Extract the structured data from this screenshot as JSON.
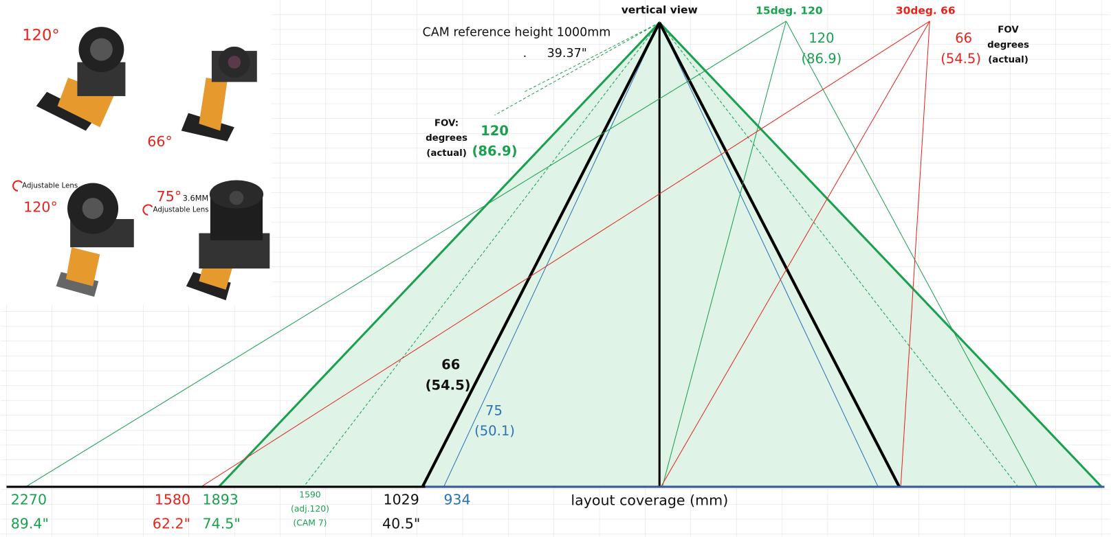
{
  "photos": [
    {
      "fov": "120°"
    },
    {
      "fov": "66°"
    },
    {
      "note": "Adjustable Lens",
      "fov": "120°"
    },
    {
      "fov": "75°",
      "lens": "3.6MM",
      "note": "Adjustable Lens"
    }
  ],
  "header": {
    "title": "vertical view",
    "reference": "CAM reference height 1000mm",
    "dot": ".",
    "reference_inches": "39.37\""
  },
  "tilted": {
    "green": "15deg.  120",
    "red": "30deg.  66"
  },
  "fov_labels": {
    "right_green": {
      "fov": "120",
      "actual": "(86.9)"
    },
    "right_red": {
      "fov": "66",
      "actual": "(54.5)"
    },
    "right_legend": {
      "title": "FOV",
      "line2": "degrees",
      "line3": "(actual)"
    },
    "left_legend": {
      "title": "FOV:",
      "line2": "degrees",
      "line3": "(actual)"
    },
    "left_green": {
      "fov": "120",
      "actual": "(86.9)"
    },
    "black": {
      "fov": "66",
      "actual": "(54.5)"
    },
    "blue": {
      "fov": "75",
      "actual": "(50.1)"
    }
  },
  "coverage": {
    "tilt15": {
      "mm": "2270",
      "inches": "89.4\""
    },
    "tilt30": {
      "mm": "1580",
      "inches": "62.2\""
    },
    "fov120": {
      "mm": "1893",
      "inches": "74.5\""
    },
    "adj120": {
      "mm": "1590",
      "line2": "(adj.120)",
      "line3": "(CAM 7)"
    },
    "fov66": {
      "mm": "1029",
      "inches": "40.5\""
    },
    "fov75": {
      "mm": "934"
    },
    "axis_label": "layout coverage (mm)"
  }
}
